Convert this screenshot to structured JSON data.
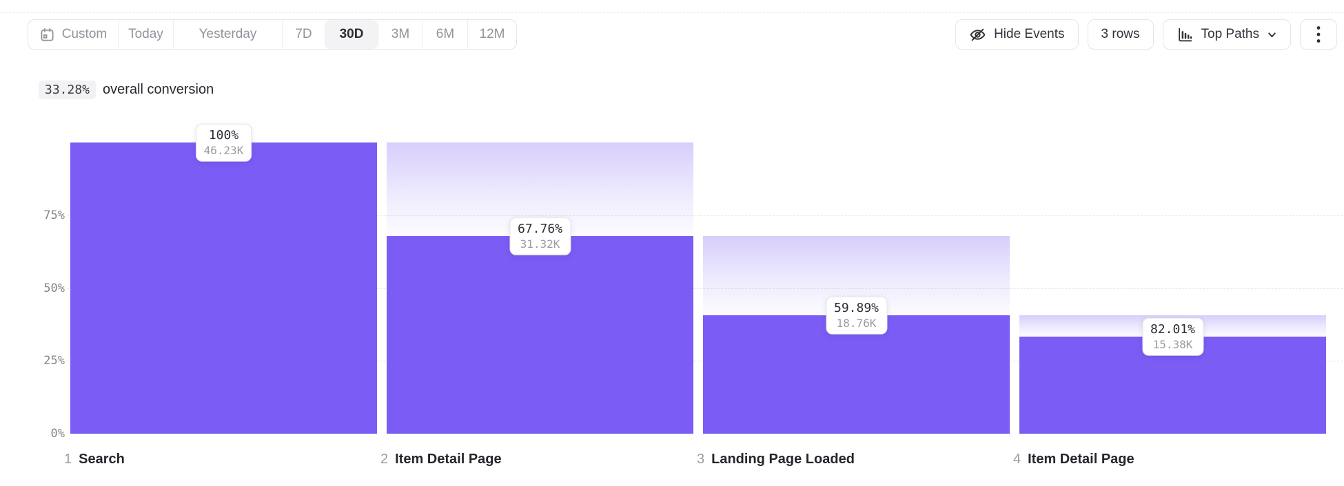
{
  "page": {
    "background": "#ffffff",
    "accent_color": "#7b5cf5"
  },
  "toolbar": {
    "date_ranges": [
      {
        "label": "Custom",
        "selected": false,
        "has_icon": true
      },
      {
        "label": "Today",
        "selected": false
      },
      {
        "label": "Yesterday",
        "selected": false
      },
      {
        "label": "7D",
        "selected": false
      },
      {
        "label": "30D",
        "selected": true
      },
      {
        "label": "3M",
        "selected": false
      },
      {
        "label": "6M",
        "selected": false
      },
      {
        "label": "12M",
        "selected": false
      }
    ],
    "hide_events_label": "Hide Events",
    "rows_label": "3 rows",
    "top_paths_label": "Top Paths",
    "icons": {
      "date_range": "calendar-icon",
      "hide_events": "eye-off-icon",
      "top_paths": "histogram-icon",
      "top_paths_caret": "chevron-down-icon",
      "more": "kebab-menu-icon"
    }
  },
  "summary": {
    "value": "33.28%",
    "label": "overall conversion"
  },
  "chart_data": {
    "type": "bar",
    "subtype": "funnel",
    "title": "",
    "xlabel": "",
    "ylabel": "",
    "ylim": [
      0,
      100
    ],
    "grid": "dashed horizontal",
    "bar_color": "#7b5cf5",
    "ghost_gradient_top": "rgba(123,92,245,0.30)",
    "ghost_gradient_bottom": "rgba(123,92,245,0.02)",
    "y_ticks": [
      {
        "label": "75%",
        "pct": 75
      },
      {
        "label": "50%",
        "pct": 50
      },
      {
        "label": "25%",
        "pct": 25
      },
      {
        "label": "0%",
        "pct": 0
      }
    ],
    "gridline_pcts": [
      75,
      50,
      25
    ],
    "steps": [
      {
        "index": "1",
        "name": "Search",
        "conversion": "100%",
        "count": "46.23K",
        "overall_pct": 100,
        "prev_overall_pct": null
      },
      {
        "index": "2",
        "name": "Item Detail Page",
        "conversion": "67.76%",
        "count": "31.32K",
        "overall_pct": 67.76,
        "prev_overall_pct": 100
      },
      {
        "index": "3",
        "name": "Landing Page Loaded",
        "conversion": "59.89%",
        "count": "18.76K",
        "overall_pct": 40.58,
        "prev_overall_pct": 67.76
      },
      {
        "index": "4",
        "name": "Item Detail Page",
        "conversion": "82.01%",
        "count": "15.38K",
        "overall_pct": 33.27,
        "prev_overall_pct": 40.58
      }
    ]
  }
}
